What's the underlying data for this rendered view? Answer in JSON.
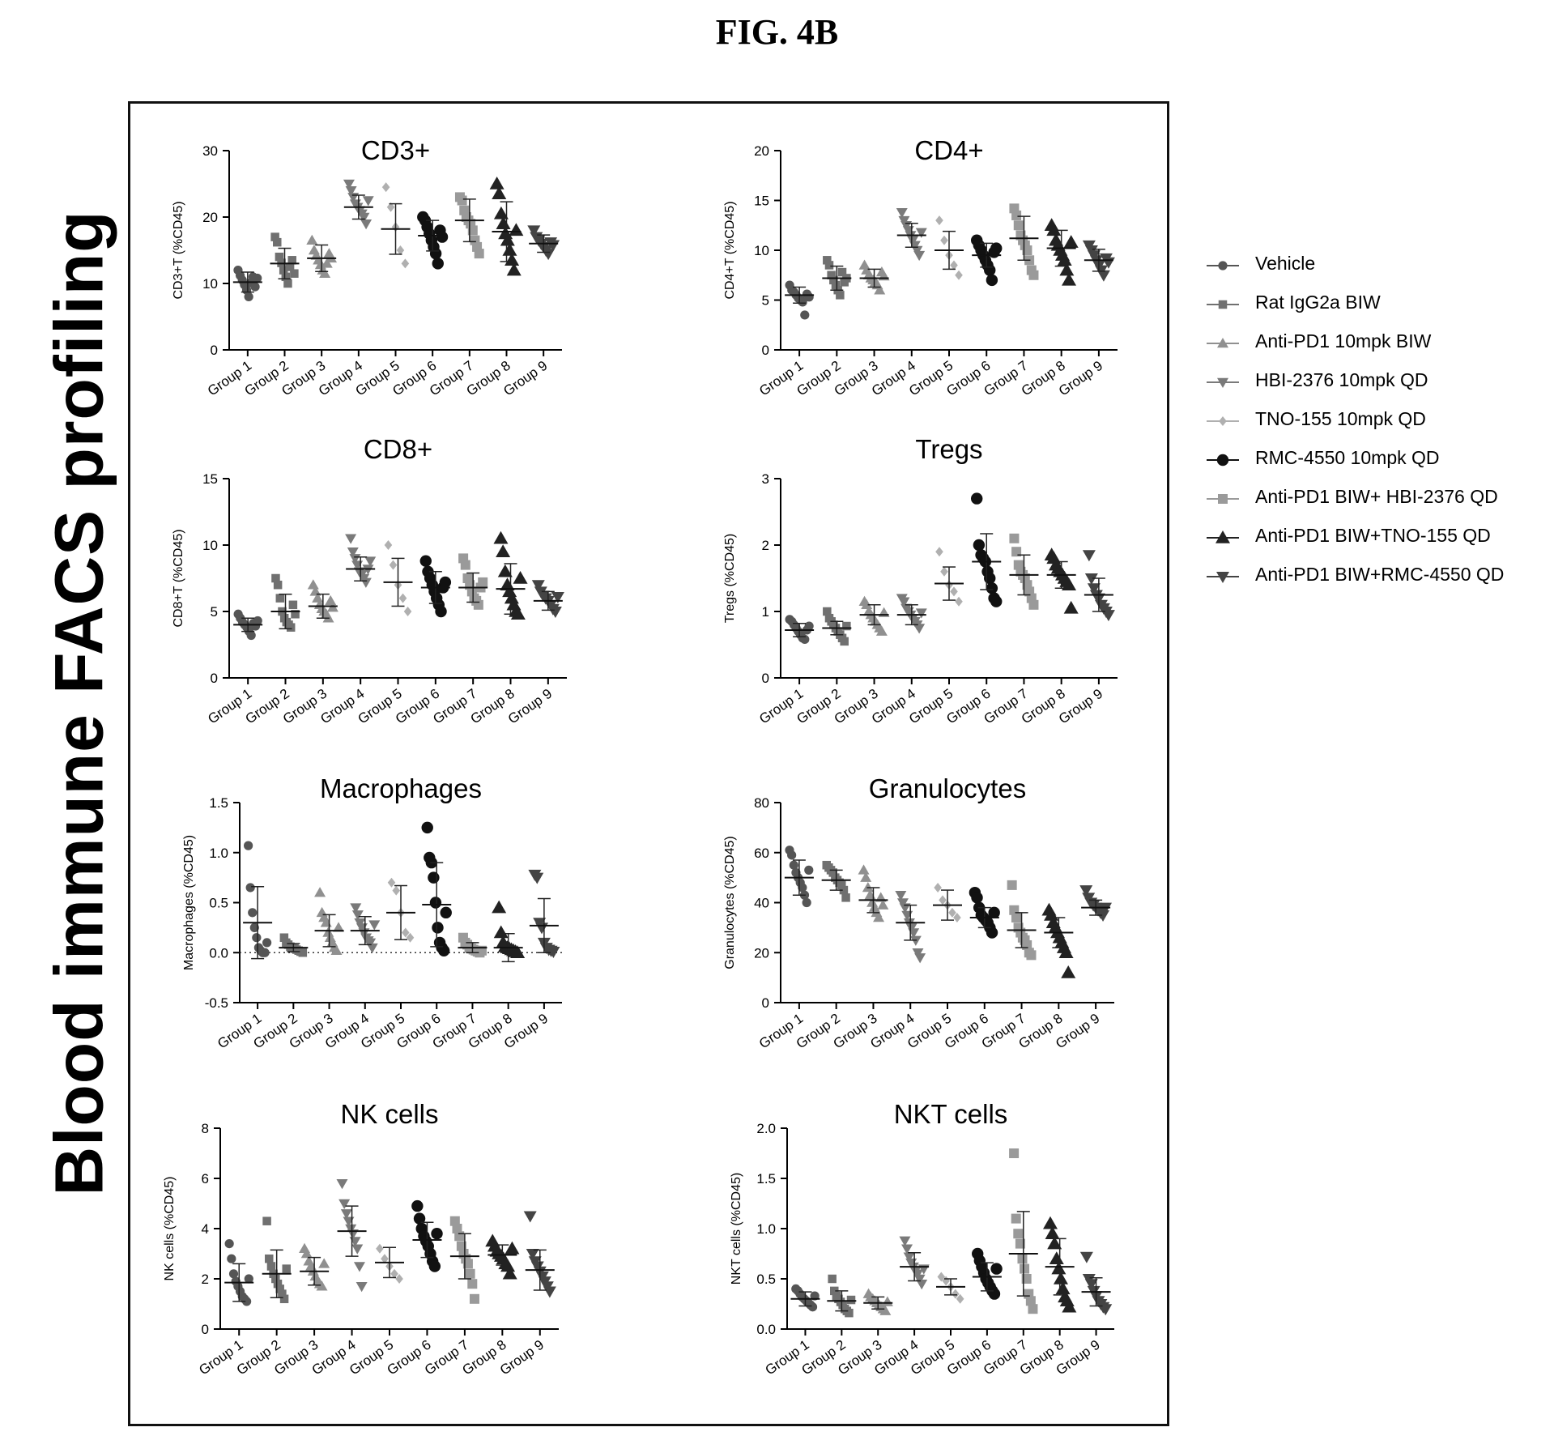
{
  "figure_label": "FIG. 4B",
  "side_title": "Blood immune FACS profiling",
  "legend": [
    {
      "label": "Vehicle",
      "color": "#555555",
      "marker": "circle",
      "size": 7
    },
    {
      "label": "Rat IgG2a BIW",
      "color": "#707070",
      "marker": "square",
      "size": 7
    },
    {
      "label": "Anti-PD1 10mpk BIW",
      "color": "#909090",
      "marker": "triangle-up",
      "size": 7
    },
    {
      "label": "HBI-2376 10mpk QD",
      "color": "#7a7a7a",
      "marker": "triangle-down",
      "size": 7
    },
    {
      "label": "TNO-155 10mpk QD",
      "color": "#b0b0b0",
      "marker": "diamond",
      "size": 6
    },
    {
      "label": "RMC-4550 10mpk QD",
      "color": "#111111",
      "marker": "circle",
      "size": 9
    },
    {
      "label": "Anti-PD1 BIW+ HBI-2376 QD",
      "color": "#9a9a9a",
      "marker": "square",
      "size": 8
    },
    {
      "label": "Anti-PD1 BIW+TNO-155 QD",
      "color": "#222222",
      "marker": "triangle-up",
      "size": 9
    },
    {
      "label": "Anti-PD1 BIW+RMC-4550 QD",
      "color": "#444444",
      "marker": "triangle-down",
      "size": 8
    }
  ],
  "chart_data": [
    {
      "type": "scatter",
      "title": "CD3+",
      "ylabel": "CD3+T (%CD45)",
      "categories": [
        "Group 1",
        "Group 2",
        "Group 3",
        "Group 4",
        "Group 5",
        "Group 6",
        "Group 7",
        "Group 8",
        "Group 9"
      ],
      "ylim": [
        0,
        30
      ],
      "yticks": [
        0,
        10,
        20,
        30
      ],
      "means": [
        10.2,
        13.0,
        13.8,
        21.5,
        18.2,
        17.2,
        19.5,
        17.8,
        16.0
      ],
      "sd": [
        1.5,
        2.3,
        2.0,
        1.8,
        3.8,
        2.3,
        3.2,
        4.5,
        1.3
      ],
      "points": [
        [
          12.0,
          11.2,
          10.5,
          9.8,
          9.0,
          8.0,
          10.1,
          11.0,
          9.5,
          10.8
        ],
        [
          17.0,
          16.2,
          14.0,
          13.1,
          12.0,
          11.0,
          10.0,
          12.5,
          13.5,
          11.5
        ],
        [
          16.5,
          15.0,
          14.2,
          13.5,
          12.8,
          12.0,
          11.5,
          13.0,
          14.5,
          13.8
        ],
        [
          25.0,
          24.0,
          23.0,
          22.0,
          21.5,
          21.0,
          20.5,
          20.0,
          19.0,
          22.5
        ],
        [
          24.5,
          21.5,
          18.5,
          15.0,
          13.0
        ],
        [
          20.0,
          19.5,
          18.5,
          17.5,
          16.5,
          15.5,
          14.5,
          13.0,
          18.0,
          17.0
        ],
        [
          23.0,
          22.5,
          21.0,
          20.0,
          19.5,
          19.0,
          18.0,
          16.5,
          15.5,
          14.5
        ],
        [
          25.0,
          23.5,
          20.5,
          19.0,
          17.5,
          16.5,
          15.0,
          13.5,
          12.0,
          18.0
        ],
        [
          18.0,
          17.0,
          16.5,
          16.0,
          15.5,
          15.0,
          14.5,
          16.2,
          15.8
        ]
      ]
    },
    {
      "type": "scatter",
      "title": "CD4+",
      "ylabel": "CD4+T (%CD45)",
      "categories": [
        "Group 1",
        "Group 2",
        "Group 3",
        "Group 4",
        "Group 5",
        "Group 6",
        "Group 7",
        "Group 8",
        "Group 9"
      ],
      "ylim": [
        0,
        20
      ],
      "yticks": [
        0,
        5,
        10,
        15,
        20
      ],
      "means": [
        5.5,
        7.2,
        7.2,
        11.5,
        10.0,
        9.5,
        11.2,
        10.2,
        9.0
      ],
      "sd": [
        0.8,
        1.2,
        0.9,
        1.2,
        1.9,
        1.2,
        2.2,
        1.8,
        1.1
      ],
      "points": [
        [
          6.5,
          6.0,
          5.8,
          5.5,
          5.2,
          5.0,
          4.8,
          3.5,
          5.6,
          5.3
        ],
        [
          9.0,
          8.5,
          7.5,
          7.0,
          6.5,
          6.0,
          5.5,
          7.8,
          6.8,
          7.2
        ],
        [
          8.5,
          8.0,
          7.5,
          7.2,
          7.0,
          6.8,
          6.5,
          6.0,
          7.8,
          7.4
        ],
        [
          13.8,
          13.0,
          12.5,
          12.0,
          11.5,
          11.0,
          10.5,
          10.0,
          9.5,
          11.8
        ],
        [
          13.0,
          11.0,
          9.5,
          8.5,
          7.5
        ],
        [
          11.0,
          10.5,
          10.0,
          9.5,
          9.0,
          8.5,
          8.0,
          7.0,
          9.8,
          10.2
        ],
        [
          14.2,
          13.5,
          12.5,
          11.5,
          11.0,
          10.5,
          10.0,
          9.0,
          8.0,
          7.5
        ],
        [
          12.5,
          12.0,
          11.0,
          10.5,
          10.0,
          9.5,
          9.0,
          8.0,
          7.0,
          10.8
        ],
        [
          10.5,
          10.0,
          9.5,
          9.0,
          8.5,
          8.0,
          7.5,
          9.2,
          8.8
        ]
      ]
    },
    {
      "type": "scatter",
      "title": "CD8+",
      "ylabel": "CD8+T (%CD45)",
      "categories": [
        "Group 1",
        "Group 2",
        "Group 3",
        "Group 4",
        "Group 5",
        "Group 6",
        "Group 7",
        "Group 8",
        "Group 9"
      ],
      "ylim": [
        0,
        15
      ],
      "yticks": [
        0,
        5,
        10,
        15
      ],
      "means": [
        4.0,
        5.0,
        5.4,
        8.2,
        7.2,
        6.8,
        6.8,
        6.7,
        5.8
      ],
      "sd": [
        0.5,
        1.3,
        0.9,
        0.9,
        1.8,
        1.2,
        1.1,
        1.9,
        0.7
      ],
      "points": [
        [
          4.8,
          4.5,
          4.2,
          4.0,
          3.8,
          3.5,
          3.2,
          4.1,
          3.9,
          4.3
        ],
        [
          7.5,
          7.0,
          6.0,
          5.0,
          4.5,
          4.2,
          4.0,
          3.8,
          5.5,
          4.8
        ],
        [
          7.0,
          6.5,
          6.0,
          5.5,
          5.2,
          5.0,
          4.8,
          4.5,
          5.8,
          5.3
        ],
        [
          10.5,
          9.5,
          9.0,
          8.5,
          8.0,
          7.8,
          7.5,
          7.2,
          8.2,
          8.8
        ],
        [
          10.0,
          8.5,
          7.0,
          6.0,
          5.0
        ],
        [
          8.8,
          8.0,
          7.5,
          7.0,
          6.5,
          6.0,
          5.5,
          5.0,
          6.8,
          7.2
        ],
        [
          9.0,
          8.5,
          7.5,
          7.0,
          6.5,
          6.0,
          5.8,
          5.5,
          6.8,
          7.2
        ],
        [
          10.5,
          9.5,
          8.0,
          7.0,
          6.5,
          6.0,
          5.5,
          5.0,
          4.8,
          7.5
        ],
        [
          7.0,
          6.5,
          6.2,
          6.0,
          5.8,
          5.5,
          5.2,
          5.0,
          6.1
        ]
      ]
    },
    {
      "type": "scatter",
      "title": "Tregs",
      "ylabel": "Tregs (%CD45)",
      "categories": [
        "Group 1",
        "Group 2",
        "Group 3",
        "Group 4",
        "Group 5",
        "Group 6",
        "Group 7",
        "Group 8",
        "Group 9"
      ],
      "ylim": [
        0,
        3
      ],
      "yticks": [
        0,
        1,
        2,
        3
      ],
      "means": [
        0.72,
        0.75,
        0.95,
        0.95,
        1.42,
        1.75,
        1.55,
        1.55,
        1.25
      ],
      "sd": [
        0.1,
        0.1,
        0.15,
        0.15,
        0.25,
        0.42,
        0.3,
        0.2,
        0.25
      ],
      "points": [
        [
          0.88,
          0.85,
          0.8,
          0.75,
          0.7,
          0.65,
          0.6,
          0.58,
          0.72,
          0.78
        ],
        [
          1.0,
          0.9,
          0.85,
          0.8,
          0.75,
          0.7,
          0.65,
          0.6,
          0.55,
          0.78
        ],
        [
          1.15,
          1.1,
          1.0,
          0.95,
          0.9,
          0.85,
          0.8,
          0.75,
          0.7,
          0.98
        ],
        [
          1.2,
          1.15,
          1.05,
          1.0,
          0.95,
          0.9,
          0.85,
          0.8,
          0.75,
          0.98
        ],
        [
          1.9,
          1.6,
          1.4,
          1.3,
          1.15
        ],
        [
          2.7,
          2.0,
          1.85,
          1.8,
          1.75,
          1.6,
          1.5,
          1.35,
          1.2,
          1.15
        ],
        [
          2.1,
          1.9,
          1.7,
          1.6,
          1.55,
          1.5,
          1.4,
          1.3,
          1.2,
          1.1
        ],
        [
          1.85,
          1.8,
          1.7,
          1.65,
          1.6,
          1.55,
          1.5,
          1.45,
          1.4,
          1.05
        ],
        [
          1.85,
          1.5,
          1.35,
          1.25,
          1.2,
          1.1,
          1.05,
          1.0,
          0.95
        ]
      ]
    },
    {
      "type": "scatter",
      "title": "Macrophages",
      "ylabel": "Macrophages (%CD45)",
      "categories": [
        "Group 1",
        "Group 2",
        "Group 3",
        "Group 4",
        "Group 5",
        "Group 6",
        "Group 7",
        "Group 8",
        "Group 9"
      ],
      "ylim": [
        -0.5,
        1.5
      ],
      "yticks": [
        -0.5,
        0.0,
        0.5,
        1.0,
        1.5
      ],
      "ytick_labels": [
        "-0.5",
        "0.0",
        "0.5",
        "1.0",
        "1.5"
      ],
      "zero_line": true,
      "means": [
        0.3,
        0.05,
        0.22,
        0.22,
        0.4,
        0.48,
        0.05,
        0.05,
        0.27
      ],
      "sd": [
        0.36,
        0.04,
        0.16,
        0.14,
        0.27,
        0.42,
        0.05,
        0.14,
        0.27
      ],
      "points": [
        [
          1.07,
          0.65,
          0.4,
          0.25,
          0.15,
          0.05,
          0.02,
          0.0,
          0.0,
          0.1
        ],
        [
          0.15,
          0.1,
          0.08,
          0.06,
          0.05,
          0.04,
          0.03,
          0.02,
          0.01,
          0.0
        ],
        [
          0.6,
          0.4,
          0.35,
          0.3,
          0.2,
          0.15,
          0.1,
          0.05,
          0.02,
          0.25
        ],
        [
          0.45,
          0.38,
          0.3,
          0.25,
          0.2,
          0.15,
          0.12,
          0.1,
          0.05,
          0.28
        ],
        [
          0.7,
          0.62,
          0.4,
          0.2,
          0.15
        ],
        [
          1.25,
          0.95,
          0.9,
          0.75,
          0.5,
          0.25,
          0.1,
          0.05,
          0.02,
          0.4
        ],
        [
          0.15,
          0.1,
          0.08,
          0.05,
          0.04,
          0.03,
          0.02,
          0.01,
          0.0,
          0.02
        ],
        [
          0.45,
          0.2,
          0.1,
          0.06,
          0.05,
          0.04,
          0.03,
          0.02,
          0.01,
          0.0
        ],
        [
          0.78,
          0.75,
          0.3,
          0.25,
          0.1,
          0.05,
          0.03,
          0.02,
          0.01
        ]
      ]
    },
    {
      "type": "scatter",
      "title": "Granulocytes",
      "ylabel": "Granulocytes (%CD45)",
      "categories": [
        "Group 1",
        "Group 2",
        "Group 3",
        "Group 4",
        "Group 5",
        "Group 6",
        "Group 7",
        "Group 8",
        "Group 9"
      ],
      "ylim": [
        0,
        80
      ],
      "yticks": [
        0,
        20,
        40,
        60,
        80
      ],
      "means": [
        50,
        49,
        41,
        32,
        39,
        34,
        29,
        28,
        38
      ],
      "sd": [
        7,
        4,
        5,
        7,
        6,
        4,
        7,
        6,
        3
      ],
      "points": [
        [
          61,
          59,
          55,
          52,
          50,
          48,
          46,
          43,
          40,
          53
        ],
        [
          55,
          54,
          53,
          52,
          50,
          49,
          48,
          47,
          45,
          42
        ],
        [
          53,
          50,
          46,
          43,
          40,
          38,
          36,
          34,
          42,
          39
        ],
        [
          43,
          40,
          38,
          35,
          32,
          30,
          28,
          25,
          20,
          18
        ],
        [
          46,
          41,
          39,
          36,
          34
        ],
        [
          44,
          42,
          38,
          35,
          34,
          33,
          32,
          30,
          28,
          36
        ],
        [
          47,
          37,
          34,
          30,
          28,
          26,
          25,
          23,
          20,
          19
        ],
        [
          37,
          35,
          32,
          30,
          28,
          26,
          24,
          22,
          20,
          12
        ],
        [
          45,
          42,
          40,
          39,
          38,
          37,
          36,
          35,
          38
        ]
      ]
    },
    {
      "type": "scatter",
      "title": "NK cells",
      "ylabel": "NK cells (%CD45)",
      "categories": [
        "Group 1",
        "Group 2",
        "Group 3",
        "Group 4",
        "Group 5",
        "Group 6",
        "Group 7",
        "Group 8",
        "Group 9"
      ],
      "ylim": [
        0,
        8
      ],
      "yticks": [
        0,
        2,
        4,
        6,
        8
      ],
      "means": [
        1.85,
        2.2,
        2.3,
        3.9,
        2.65,
        3.55,
        2.9,
        2.95,
        2.35
      ],
      "sd": [
        0.75,
        0.95,
        0.55,
        1.0,
        0.6,
        0.7,
        0.9,
        0.4,
        0.8
      ],
      "points": [
        [
          3.4,
          2.8,
          2.2,
          1.9,
          1.7,
          1.5,
          1.3,
          1.2,
          1.1,
          2.0
        ],
        [
          4.3,
          2.8,
          2.5,
          2.2,
          2.0,
          1.8,
          1.6,
          1.4,
          1.2,
          2.4
        ],
        [
          3.2,
          3.0,
          2.7,
          2.5,
          2.3,
          2.1,
          1.9,
          1.8,
          1.7,
          2.6
        ],
        [
          5.8,
          5.0,
          4.6,
          4.3,
          4.0,
          3.8,
          3.5,
          3.2,
          2.5,
          1.7
        ],
        [
          3.2,
          2.8,
          2.5,
          2.2,
          2.0
        ],
        [
          4.9,
          4.4,
          4.0,
          3.7,
          3.5,
          3.3,
          3.0,
          2.7,
          2.5,
          3.8
        ],
        [
          4.3,
          4.0,
          3.7,
          3.3,
          3.0,
          2.8,
          2.6,
          2.2,
          1.8,
          1.2
        ],
        [
          3.5,
          3.3,
          3.1,
          3.0,
          2.9,
          2.8,
          2.6,
          2.5,
          2.2,
          3.2
        ],
        [
          4.5,
          3.0,
          2.7,
          2.5,
          2.3,
          2.1,
          1.9,
          1.7,
          1.5
        ]
      ]
    },
    {
      "type": "scatter",
      "title": "NKT cells",
      "ylabel": "NKT cells (%CD45)",
      "categories": [
        "Group 1",
        "Group 2",
        "Group 3",
        "Group 4",
        "Group 5",
        "Group 6",
        "Group 7",
        "Group 8",
        "Group 9"
      ],
      "ylim": [
        0,
        2
      ],
      "yticks": [
        0,
        0.5,
        1.0,
        1.5,
        2.0
      ],
      "ytick_labels": [
        "0.0",
        "0.5",
        "1.0",
        "1.5",
        "2.0"
      ],
      "means": [
        0.3,
        0.28,
        0.26,
        0.62,
        0.42,
        0.52,
        0.75,
        0.62,
        0.37
      ],
      "sd": [
        0.07,
        0.1,
        0.06,
        0.14,
        0.08,
        0.14,
        0.42,
        0.28,
        0.14
      ],
      "points": [
        [
          0.4,
          0.38,
          0.35,
          0.32,
          0.3,
          0.28,
          0.26,
          0.24,
          0.22,
          0.33
        ],
        [
          0.5,
          0.38,
          0.33,
          0.3,
          0.27,
          0.24,
          0.2,
          0.18,
          0.16,
          0.29
        ],
        [
          0.35,
          0.32,
          0.3,
          0.28,
          0.26,
          0.24,
          0.22,
          0.2,
          0.18,
          0.27
        ],
        [
          0.88,
          0.8,
          0.72,
          0.66,
          0.62,
          0.58,
          0.55,
          0.5,
          0.45,
          0.6
        ],
        [
          0.52,
          0.48,
          0.42,
          0.35,
          0.3
        ],
        [
          0.75,
          0.68,
          0.62,
          0.56,
          0.5,
          0.46,
          0.42,
          0.38,
          0.35,
          0.6
        ],
        [
          1.75,
          1.1,
          0.95,
          0.85,
          0.7,
          0.6,
          0.5,
          0.35,
          0.28,
          0.2
        ],
        [
          1.05,
          0.95,
          0.85,
          0.7,
          0.6,
          0.5,
          0.4,
          0.32,
          0.28,
          0.22
        ],
        [
          0.72,
          0.5,
          0.45,
          0.38,
          0.33,
          0.28,
          0.25,
          0.22,
          0.2
        ]
      ]
    }
  ]
}
